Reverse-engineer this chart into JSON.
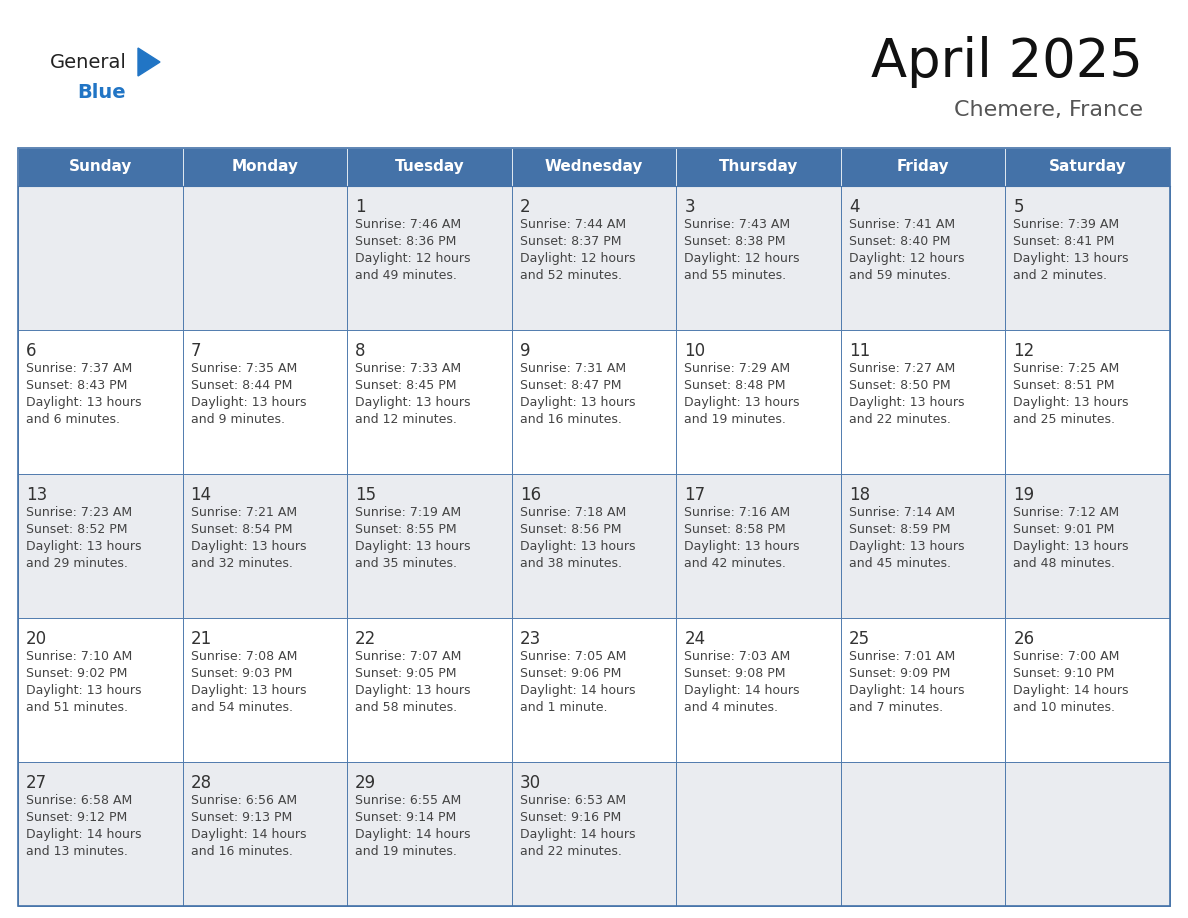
{
  "title": "April 2025",
  "subtitle": "Chemere, France",
  "days_of_week": [
    "Sunday",
    "Monday",
    "Tuesday",
    "Wednesday",
    "Thursday",
    "Friday",
    "Saturday"
  ],
  "header_bg": "#4472A8",
  "header_text": "#FFFFFF",
  "cell_bg_light": "#EAECF0",
  "cell_bg_white": "#FFFFFF",
  "cell_border": "#4472A8",
  "day_num_color": "#333333",
  "info_color": "#444444",
  "title_color": "#111111",
  "subtitle_color": "#555555",
  "logo_black": "#222222",
  "logo_blue": "#2175C5",
  "calendar_data": [
    [
      null,
      null,
      {
        "day": 1,
        "sunrise": "7:46 AM",
        "sunset": "8:36 PM",
        "daylight_h": "12 hours",
        "daylight_m": "and 49 minutes."
      },
      {
        "day": 2,
        "sunrise": "7:44 AM",
        "sunset": "8:37 PM",
        "daylight_h": "12 hours",
        "daylight_m": "and 52 minutes."
      },
      {
        "day": 3,
        "sunrise": "7:43 AM",
        "sunset": "8:38 PM",
        "daylight_h": "12 hours",
        "daylight_m": "and 55 minutes."
      },
      {
        "day": 4,
        "sunrise": "7:41 AM",
        "sunset": "8:40 PM",
        "daylight_h": "12 hours",
        "daylight_m": "and 59 minutes."
      },
      {
        "day": 5,
        "sunrise": "7:39 AM",
        "sunset": "8:41 PM",
        "daylight_h": "13 hours",
        "daylight_m": "and 2 minutes."
      }
    ],
    [
      {
        "day": 6,
        "sunrise": "7:37 AM",
        "sunset": "8:43 PM",
        "daylight_h": "13 hours",
        "daylight_m": "and 6 minutes."
      },
      {
        "day": 7,
        "sunrise": "7:35 AM",
        "sunset": "8:44 PM",
        "daylight_h": "13 hours",
        "daylight_m": "and 9 minutes."
      },
      {
        "day": 8,
        "sunrise": "7:33 AM",
        "sunset": "8:45 PM",
        "daylight_h": "13 hours",
        "daylight_m": "and 12 minutes."
      },
      {
        "day": 9,
        "sunrise": "7:31 AM",
        "sunset": "8:47 PM",
        "daylight_h": "13 hours",
        "daylight_m": "and 16 minutes."
      },
      {
        "day": 10,
        "sunrise": "7:29 AM",
        "sunset": "8:48 PM",
        "daylight_h": "13 hours",
        "daylight_m": "and 19 minutes."
      },
      {
        "day": 11,
        "sunrise": "7:27 AM",
        "sunset": "8:50 PM",
        "daylight_h": "13 hours",
        "daylight_m": "and 22 minutes."
      },
      {
        "day": 12,
        "sunrise": "7:25 AM",
        "sunset": "8:51 PM",
        "daylight_h": "13 hours",
        "daylight_m": "and 25 minutes."
      }
    ],
    [
      {
        "day": 13,
        "sunrise": "7:23 AM",
        "sunset": "8:52 PM",
        "daylight_h": "13 hours",
        "daylight_m": "and 29 minutes."
      },
      {
        "day": 14,
        "sunrise": "7:21 AM",
        "sunset": "8:54 PM",
        "daylight_h": "13 hours",
        "daylight_m": "and 32 minutes."
      },
      {
        "day": 15,
        "sunrise": "7:19 AM",
        "sunset": "8:55 PM",
        "daylight_h": "13 hours",
        "daylight_m": "and 35 minutes."
      },
      {
        "day": 16,
        "sunrise": "7:18 AM",
        "sunset": "8:56 PM",
        "daylight_h": "13 hours",
        "daylight_m": "and 38 minutes."
      },
      {
        "day": 17,
        "sunrise": "7:16 AM",
        "sunset": "8:58 PM",
        "daylight_h": "13 hours",
        "daylight_m": "and 42 minutes."
      },
      {
        "day": 18,
        "sunrise": "7:14 AM",
        "sunset": "8:59 PM",
        "daylight_h": "13 hours",
        "daylight_m": "and 45 minutes."
      },
      {
        "day": 19,
        "sunrise": "7:12 AM",
        "sunset": "9:01 PM",
        "daylight_h": "13 hours",
        "daylight_m": "and 48 minutes."
      }
    ],
    [
      {
        "day": 20,
        "sunrise": "7:10 AM",
        "sunset": "9:02 PM",
        "daylight_h": "13 hours",
        "daylight_m": "and 51 minutes."
      },
      {
        "day": 21,
        "sunrise": "7:08 AM",
        "sunset": "9:03 PM",
        "daylight_h": "13 hours",
        "daylight_m": "and 54 minutes."
      },
      {
        "day": 22,
        "sunrise": "7:07 AM",
        "sunset": "9:05 PM",
        "daylight_h": "13 hours",
        "daylight_m": "and 58 minutes."
      },
      {
        "day": 23,
        "sunrise": "7:05 AM",
        "sunset": "9:06 PM",
        "daylight_h": "14 hours",
        "daylight_m": "and 1 minute."
      },
      {
        "day": 24,
        "sunrise": "7:03 AM",
        "sunset": "9:08 PM",
        "daylight_h": "14 hours",
        "daylight_m": "and 4 minutes."
      },
      {
        "day": 25,
        "sunrise": "7:01 AM",
        "sunset": "9:09 PM",
        "daylight_h": "14 hours",
        "daylight_m": "and 7 minutes."
      },
      {
        "day": 26,
        "sunrise": "7:00 AM",
        "sunset": "9:10 PM",
        "daylight_h": "14 hours",
        "daylight_m": "and 10 minutes."
      }
    ],
    [
      {
        "day": 27,
        "sunrise": "6:58 AM",
        "sunset": "9:12 PM",
        "daylight_h": "14 hours",
        "daylight_m": "and 13 minutes."
      },
      {
        "day": 28,
        "sunrise": "6:56 AM",
        "sunset": "9:13 PM",
        "daylight_h": "14 hours",
        "daylight_m": "and 16 minutes."
      },
      {
        "day": 29,
        "sunrise": "6:55 AM",
        "sunset": "9:14 PM",
        "daylight_h": "14 hours",
        "daylight_m": "and 19 minutes."
      },
      {
        "day": 30,
        "sunrise": "6:53 AM",
        "sunset": "9:16 PM",
        "daylight_h": "14 hours",
        "daylight_m": "and 22 minutes."
      },
      null,
      null,
      null
    ]
  ]
}
